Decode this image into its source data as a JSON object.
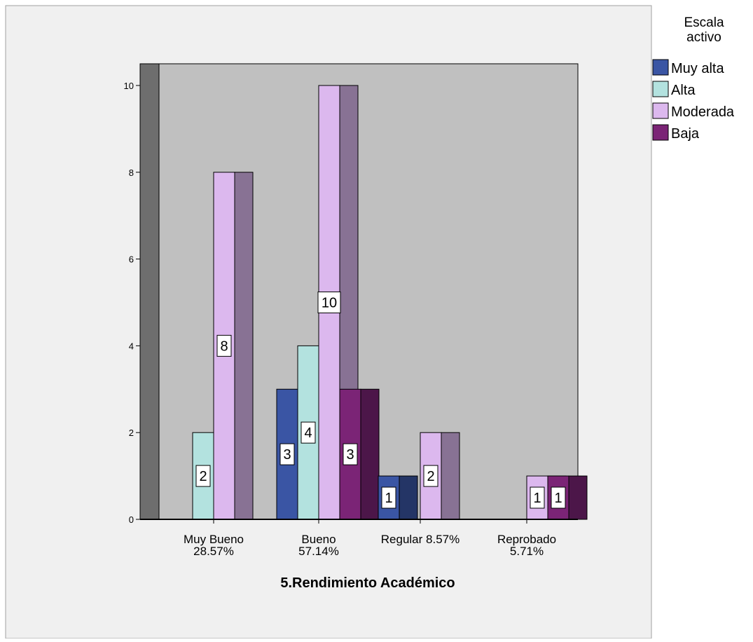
{
  "chart_data": {
    "type": "bar",
    "xlabel": "5.Rendimiento Académico",
    "ylabel": "",
    "ylim": [
      0,
      10.5
    ],
    "yticks": [
      0,
      2,
      4,
      6,
      8,
      10
    ],
    "grid": false,
    "legend_position": "right",
    "legend_title": [
      "Escala",
      "activo"
    ],
    "categories": [
      [
        "Muy Bueno",
        "28.57%"
      ],
      [
        "Bueno",
        "57.14%"
      ],
      [
        "Regular 8.57%"
      ],
      [
        "Reprobado",
        "5.71%"
      ]
    ],
    "series": [
      {
        "name": "Muy alta",
        "color": "#3a55a4",
        "values": [
          0,
          3,
          1,
          0
        ]
      },
      {
        "name": "Alta",
        "color": "#b3e2df",
        "values": [
          2,
          4,
          0,
          0
        ]
      },
      {
        "name": "Moderada",
        "color": "#dcb8ee",
        "values": [
          8,
          10,
          2,
          1
        ]
      },
      {
        "name": "Baja",
        "color": "#7b2476",
        "values": [
          0,
          3,
          0,
          1
        ]
      }
    ],
    "colors": {
      "plot_background": "#c0c0c0",
      "panel_background": "#f0f0f0",
      "bar_shadow": "#6e6e6e"
    }
  }
}
